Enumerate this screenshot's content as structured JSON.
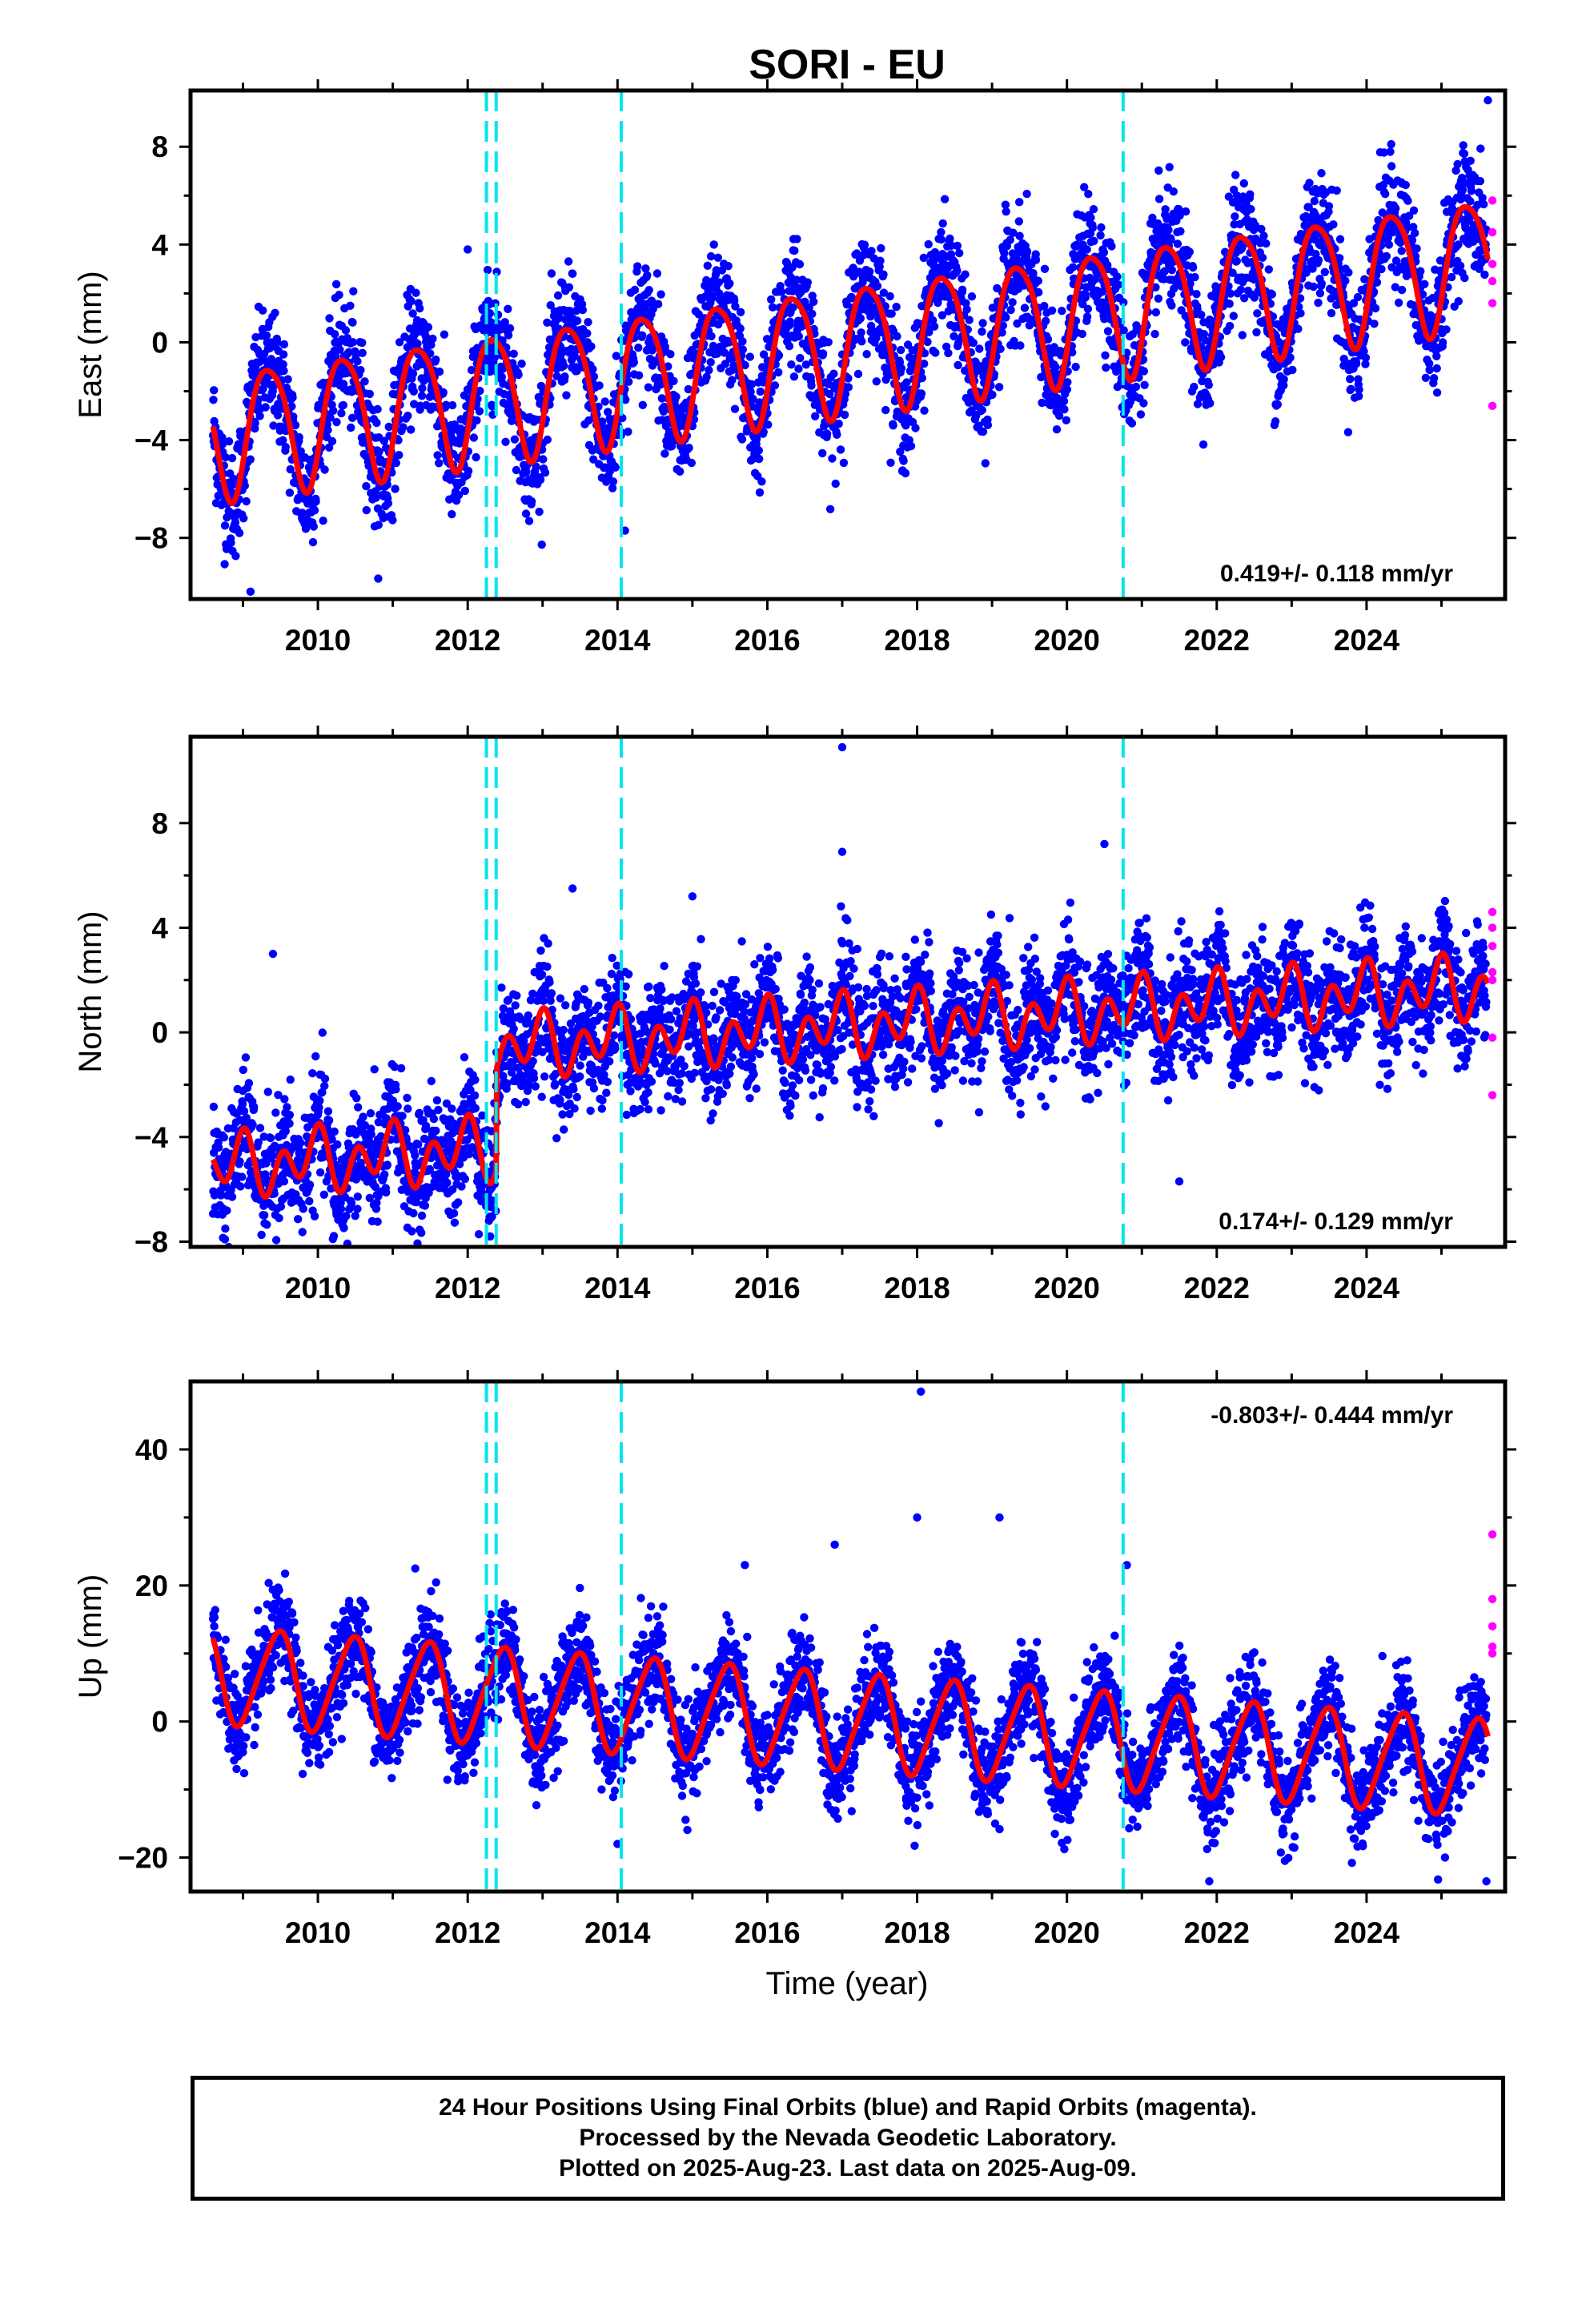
{
  "chart_data": {
    "type": "scatter",
    "title": "SORI - EU",
    "xlabel": "Time (year)",
    "x_ticks": [
      "2010",
      "2012",
      "2014",
      "2016",
      "2018",
      "2020",
      "2022",
      "2024"
    ],
    "xlim": [
      2008.3,
      2025.85
    ],
    "event_lines": [
      2012.25,
      2012.38,
      2014.05,
      2020.75
    ],
    "event_line_color": "#00e5ee",
    "final_orbit_color": "#0000ff",
    "rapid_orbit_color": "#ff00ff",
    "fit_color": "#ff0000",
    "panels": [
      {
        "name": "East",
        "ylabel": "East (mm)",
        "ylim": [
          -10.5,
          10.3
        ],
        "y_ticks": [
          "8",
          "4",
          "0",
          "−4",
          "−8"
        ],
        "y_tick_values": [
          8,
          4,
          0,
          -4,
          -8
        ],
        "rate_text": "0.419+/- 0.118 mm/yr",
        "rate_position": "bottom-right",
        "model": {
          "t0": 2008.6,
          "offset": -3.0,
          "rate": 0.419,
          "amp1": 2.6,
          "phase1": -0.58,
          "amp2": 0.4,
          "phase2": 0.1,
          "steps": [],
          "scatter": 1.2
        },
        "fit_values": [
          [
            2008.6,
            -1.0
          ],
          [
            2009.1,
            -6.1
          ],
          [
            2009.6,
            -0.3
          ],
          [
            2010.1,
            -5.6
          ],
          [
            2010.6,
            0.0
          ],
          [
            2011.1,
            -5.3
          ],
          [
            2011.6,
            0.5
          ],
          [
            2012.1,
            -4.7
          ],
          [
            2012.6,
            1.1
          ],
          [
            2013.1,
            -4.2
          ],
          [
            2013.6,
            1.5
          ],
          [
            2014.1,
            -3.7
          ],
          [
            2014.6,
            1.5
          ],
          [
            2015.1,
            -3.8
          ],
          [
            2015.6,
            1.9
          ],
          [
            2016.1,
            -3.4
          ],
          [
            2016.6,
            2.3
          ],
          [
            2017.1,
            -2.9
          ],
          [
            2017.6,
            2.7
          ],
          [
            2018.1,
            -2.5
          ],
          [
            2018.6,
            3.1
          ],
          [
            2019.1,
            -2.1
          ],
          [
            2019.6,
            3.5
          ],
          [
            2020.1,
            -1.7
          ],
          [
            2020.6,
            3.9
          ],
          [
            2021.1,
            -0.4
          ],
          [
            2021.6,
            5.1
          ],
          [
            2022.1,
            0.0
          ],
          [
            2022.6,
            5.5
          ],
          [
            2023.1,
            0.4
          ],
          [
            2023.6,
            6.0
          ],
          [
            2024.1,
            0.8
          ],
          [
            2024.6,
            6.4
          ],
          [
            2025.1,
            1.2
          ],
          [
            2025.55,
            6.8
          ],
          [
            2025.7,
            4.8
          ]
        ],
        "rapid_points": [
          [
            2025.68,
            5.8
          ],
          [
            2025.68,
            4.5
          ],
          [
            2025.68,
            3.2
          ],
          [
            2025.68,
            2.5
          ],
          [
            2025.68,
            1.6
          ],
          [
            2025.68,
            -2.6
          ]
        ],
        "outliers": [
          [
            2025.62,
            9.9
          ],
          [
            2009.1,
            -10.2
          ],
          [
            2014.1,
            -7.7
          ],
          [
            2012.0,
            3.8
          ]
        ]
      },
      {
        "name": "North",
        "ylabel": "North (mm)",
        "ylim": [
          -8.2,
          11.3
        ],
        "y_ticks": [
          "8",
          "4",
          "0",
          "−4",
          "−8"
        ],
        "y_tick_values": [
          8,
          4,
          0,
          -4,
          -8
        ],
        "rate_text": "0.174+/- 0.129 mm/yr",
        "rate_position": "bottom-right",
        "model": {
          "t0": 2008.6,
          "offset": -3.5,
          "rate": 0.174,
          "amp1": 0.6,
          "phase1": 2.0,
          "amp2": 0.9,
          "phase2": 1.2,
          "steps": [
            [
              2012.38,
              3.9
            ]
          ],
          "scatter": 1.1
        },
        "fit_values": [
          [
            2008.6,
            -2.0
          ],
          [
            2009.0,
            -4.3
          ],
          [
            2009.5,
            -2.1
          ],
          [
            2010.0,
            -4.0
          ],
          [
            2010.5,
            -2.1
          ],
          [
            2011.0,
            -3.9
          ],
          [
            2011.5,
            -2.1
          ],
          [
            2012.0,
            -3.9
          ],
          [
            2012.3,
            -4.3
          ],
          [
            2012.4,
            0.6
          ],
          [
            2013.0,
            -0.7
          ],
          [
            2014.0,
            -0.3
          ],
          [
            2015.0,
            -0.2
          ],
          [
            2016.0,
            0.2
          ],
          [
            2017.0,
            0.5
          ],
          [
            2018.0,
            0.8
          ],
          [
            2019.0,
            1.1
          ],
          [
            2020.0,
            1.3
          ],
          [
            2021.0,
            1.6
          ],
          [
            2022.0,
            2.0
          ],
          [
            2023.0,
            2.3
          ],
          [
            2024.0,
            2.4
          ],
          [
            2025.0,
            2.6
          ],
          [
            2025.6,
            2.8
          ]
        ],
        "rapid_points": [
          [
            2025.68,
            4.6
          ],
          [
            2025.68,
            4.0
          ],
          [
            2025.68,
            3.3
          ],
          [
            2025.68,
            2.3
          ],
          [
            2025.68,
            2.0
          ],
          [
            2025.68,
            -0.2
          ],
          [
            2025.68,
            -2.4
          ]
        ],
        "outliers": [
          [
            2017.0,
            10.9
          ],
          [
            2017.0,
            6.9
          ],
          [
            2013.4,
            5.5
          ],
          [
            2015.0,
            5.2
          ],
          [
            2021.5,
            -5.7
          ],
          [
            2009.4,
            3.0
          ],
          [
            2012.3,
            -7.8
          ],
          [
            2010.2,
            -7.9
          ],
          [
            2020.5,
            7.2
          ]
        ]
      },
      {
        "name": "Up",
        "ylabel": "Up (mm)",
        "ylim": [
          -25,
          50
        ],
        "y_ticks": [
          "40",
          "20",
          "0",
          "−20"
        ],
        "y_tick_values": [
          40,
          20,
          0,
          -20
        ],
        "rate_text": "-0.803+/- 0.444 mm/yr",
        "rate_position": "top-right",
        "model": {
          "t0": 2008.6,
          "offset": 6.0,
          "rate": -0.803,
          "amp1": 7.0,
          "phase1": -1.3,
          "amp2": 1.0,
          "phase2": 0.4,
          "steps": [],
          "scatter": 3.5
        },
        "fit_values": [
          [
            2008.6,
            6.0
          ],
          [
            2009.2,
            -2.0
          ],
          [
            2009.7,
            11.0
          ],
          [
            2010.2,
            -2.5
          ],
          [
            2010.7,
            10.0
          ],
          [
            2011.2,
            -3.0
          ],
          [
            2011.7,
            9.5
          ],
          [
            2012.2,
            -4.0
          ],
          [
            2012.7,
            11.0
          ],
          [
            2013.2,
            -2.5
          ],
          [
            2013.7,
            10.0
          ],
          [
            2014.2,
            -2.0
          ],
          [
            2014.7,
            10.0
          ],
          [
            2015.2,
            -3.5
          ],
          [
            2015.7,
            9.5
          ],
          [
            2016.2,
            -4.0
          ],
          [
            2016.7,
            8.5
          ],
          [
            2017.2,
            -5.0
          ],
          [
            2017.7,
            8.0
          ],
          [
            2018.2,
            -6.0
          ],
          [
            2018.7,
            7.0
          ],
          [
            2019.2,
            -6.5
          ],
          [
            2019.7,
            6.0
          ],
          [
            2020.2,
            -7.5
          ],
          [
            2020.7,
            5.0
          ],
          [
            2021.2,
            -9.0
          ],
          [
            2021.7,
            3.0
          ],
          [
            2022.2,
            -10.0
          ],
          [
            2022.7,
            2.5
          ],
          [
            2023.2,
            -11.0
          ],
          [
            2023.7,
            2.0
          ],
          [
            2024.2,
            -11.5
          ],
          [
            2024.7,
            1.0
          ],
          [
            2025.2,
            -12.5
          ],
          [
            2025.6,
            0.0
          ]
        ],
        "rapid_points": [
          [
            2025.68,
            27.5
          ],
          [
            2025.68,
            18.0
          ],
          [
            2025.68,
            14.0
          ],
          [
            2025.68,
            11.0
          ],
          [
            2025.68,
            10.0
          ]
        ],
        "outliers": [
          [
            2018.05,
            48.5
          ],
          [
            2018.0,
            30.0
          ],
          [
            2019.1,
            30.0
          ],
          [
            2016.9,
            26.0
          ],
          [
            2020.8,
            23.0
          ],
          [
            2015.7,
            23.0
          ],
          [
            2011.3,
            22.5
          ],
          [
            2014.0,
            -18.0
          ],
          [
            2021.9,
            -23.5
          ],
          [
            2025.6,
            -23.5
          ]
        ]
      }
    ]
  },
  "footer": {
    "line1": "24 Hour Positions Using Final Orbits (blue) and Rapid Orbits (magenta).",
    "line2": "Processed by the Nevada Geodetic Laboratory.",
    "line3": "Plotted on 2025-Aug-23. Last data on 2025-Aug-09."
  }
}
